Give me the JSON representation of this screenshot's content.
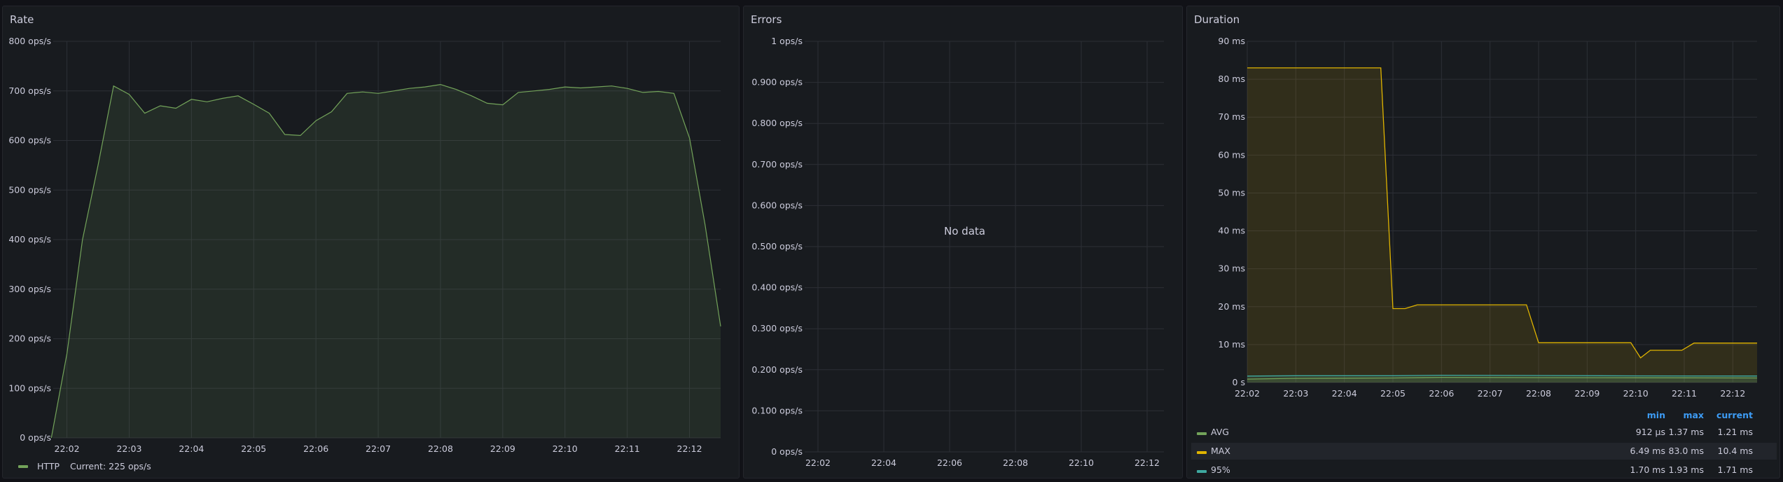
{
  "panels": {
    "rate": {
      "title": "Rate",
      "legend": {
        "series": "HTTP",
        "current_label": "Current: 225 ops/s",
        "color": "#73a35a"
      },
      "chart_data": {
        "type": "area",
        "title": "Rate",
        "y_ticks": [
          "0 ops/s",
          "100 ops/s",
          "200 ops/s",
          "300 ops/s",
          "400 ops/s",
          "500 ops/s",
          "600 ops/s",
          "700 ops/s",
          "800 ops/s"
        ],
        "x_ticks": [
          "22:02",
          "22:03",
          "22:04",
          "22:05",
          "22:06",
          "22:07",
          "22:08",
          "22:09",
          "22:10",
          "22:11",
          "22:12"
        ],
        "x_tick_minutes": [
          2,
          3,
          4,
          5,
          6,
          7,
          8,
          9,
          10,
          11,
          12
        ],
        "ylim": [
          0,
          800
        ],
        "xlim_minutes": [
          1.78,
          12.5
        ],
        "series": [
          {
            "name": "HTTP",
            "color": "#73a35a",
            "x_minutes": [
              1.75,
              2.0,
              2.25,
              2.5,
              2.75,
              3.0,
              3.25,
              3.5,
              3.75,
              4.0,
              4.25,
              4.5,
              4.75,
              5.0,
              5.25,
              5.5,
              5.75,
              6.0,
              6.25,
              6.5,
              6.75,
              7.0,
              7.25,
              7.5,
              7.75,
              8.0,
              8.25,
              8.5,
              8.75,
              9.0,
              9.25,
              9.5,
              9.75,
              10.0,
              10.25,
              10.5,
              10.75,
              11.0,
              11.25,
              11.5,
              11.75,
              12.0,
              12.25,
              12.5
            ],
            "values": [
              0,
              170,
              400,
              550,
              710,
              693,
              655,
              670,
              665,
              683,
              678,
              685,
              690,
              673,
              655,
              612,
              610,
              640,
              658,
              695,
              698,
              695,
              700,
              705,
              708,
              713,
              703,
              690,
              675,
              672,
              697,
              700,
              703,
              708,
              706,
              708,
              710,
              705,
              697,
              699,
              695,
              605,
              430,
              225
            ]
          }
        ]
      }
    },
    "errors": {
      "title": "Errors",
      "no_data": "No data",
      "chart_data": {
        "type": "line",
        "title": "Errors",
        "y_ticks": [
          "0 ops/s",
          "0.100 ops/s",
          "0.200 ops/s",
          "0.300 ops/s",
          "0.400 ops/s",
          "0.500 ops/s",
          "0.600 ops/s",
          "0.700 ops/s",
          "0.800 ops/s",
          "0.900 ops/s",
          "1 ops/s"
        ],
        "x_ticks": [
          "22:02",
          "22:04",
          "22:06",
          "22:08",
          "22:10",
          "22:12"
        ],
        "ylim": [
          0,
          1
        ],
        "series": []
      }
    },
    "duration": {
      "title": "Duration",
      "legend": {
        "headers": [
          "min",
          "max",
          "current"
        ],
        "rows": [
          {
            "name": "AVG",
            "color": "#73a35a",
            "min": "912 µs",
            "max": "1.37 ms",
            "current": "1.21 ms"
          },
          {
            "name": "MAX",
            "color": "#e0b400",
            "min": "6.49 ms",
            "max": "83.0 ms",
            "current": "10.4 ms"
          },
          {
            "name": "95%",
            "color": "#3ea9a0",
            "min": "1.70 ms",
            "max": "1.93 ms",
            "current": "1.71 ms"
          }
        ]
      },
      "chart_data": {
        "type": "area",
        "title": "Duration",
        "y_ticks": [
          "0 s",
          "10 ms",
          "20 ms",
          "30 ms",
          "40 ms",
          "50 ms",
          "60 ms",
          "70 ms",
          "80 ms",
          "90 ms"
        ],
        "x_ticks": [
          "22:02",
          "22:03",
          "22:04",
          "22:05",
          "22:06",
          "22:07",
          "22:08",
          "22:09",
          "22:10",
          "22:11",
          "22:12"
        ],
        "x_tick_minutes": [
          2,
          3,
          4,
          5,
          6,
          7,
          8,
          9,
          10,
          11,
          12
        ],
        "ylim": [
          0,
          90
        ],
        "xlim_minutes": [
          2,
          12.5
        ],
        "series": [
          {
            "name": "MAX",
            "color": "#e0b400",
            "x_minutes": [
              2.0,
              4.75,
              5.0,
              5.25,
              5.5,
              7.75,
              8.0,
              9.9,
              10.1,
              10.3,
              10.5,
              10.95,
              11.2,
              12.5
            ],
            "values": [
              83,
              83,
              19.5,
              19.5,
              20.5,
              20.5,
              10.5,
              10.5,
              6.5,
              8.5,
              8.5,
              8.5,
              10.4,
              10.4
            ]
          },
          {
            "name": "95%",
            "color": "#3ea9a0",
            "x_minutes": [
              2.0,
              3.0,
              5.0,
              6.0,
              8.0,
              10.0,
              12.5
            ],
            "values": [
              1.7,
              1.8,
              1.8,
              1.93,
              1.85,
              1.75,
              1.71
            ]
          },
          {
            "name": "AVG",
            "color": "#73a35a",
            "x_minutes": [
              2.0,
              3.0,
              5.0,
              6.0,
              8.0,
              10.0,
              12.5
            ],
            "values": [
              0.912,
              1.1,
              1.2,
              1.37,
              1.3,
              1.25,
              1.21
            ]
          }
        ]
      }
    }
  }
}
